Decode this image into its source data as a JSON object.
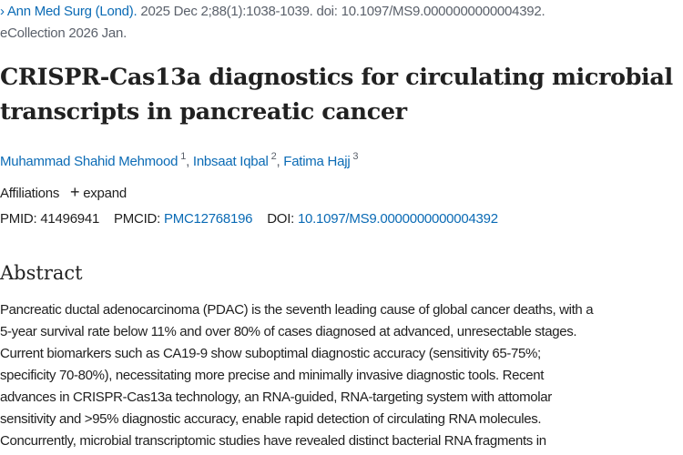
{
  "citation": {
    "journal": "Ann Med Surg (Lond).",
    "details": " 2025 Dec 2;88(1):1038-1039. doi: 10.1097/MS9.0000000000004392.",
    "ecollection": "eCollection 2026 Jan."
  },
  "title_lines": [
    "CRISPR-Cas13a diagnostics for circulating microbial",
    "transcripts in pancreatic cancer"
  ],
  "authors": [
    {
      "name": "Muhammad Shahid Mehmood",
      "aff": "1"
    },
    {
      "name": "Inbsaat Iqbal",
      "aff": "2"
    },
    {
      "name": "Fatima Hajj",
      "aff": "3"
    }
  ],
  "affiliations": {
    "label": "Affiliations",
    "expand": "expand"
  },
  "ids": {
    "pmid_label": "PMID:",
    "pmid": "41496941",
    "pmcid_label": "PMCID:",
    "pmcid": "PMC12768196",
    "doi_label": "DOI:",
    "doi": "10.1097/MS9.0000000000004392"
  },
  "abstract": {
    "heading": "Abstract",
    "lines": [
      "Pancreatic ductal adenocarcinoma (PDAC) is the seventh leading cause of global cancer deaths, with a",
      "5-year survival rate below 11% and over 80% of cases diagnosed at advanced, unresectable stages.",
      "Current biomarkers such as CA19-9 show suboptimal diagnostic accuracy (sensitivity 65-75%;",
      "specificity 70-80%), necessitating more precise and minimally invasive diagnostic tools. Recent",
      "advances in CRISPR-Cas13a technology, an RNA-guided, RNA-targeting system with attomolar",
      "sensitivity and >95% diagnostic accuracy, enable rapid detection of circulating RNA molecules.",
      "Concurrently, microbial transcriptomic studies have revealed distinct bacterial RNA fragments in"
    ]
  }
}
